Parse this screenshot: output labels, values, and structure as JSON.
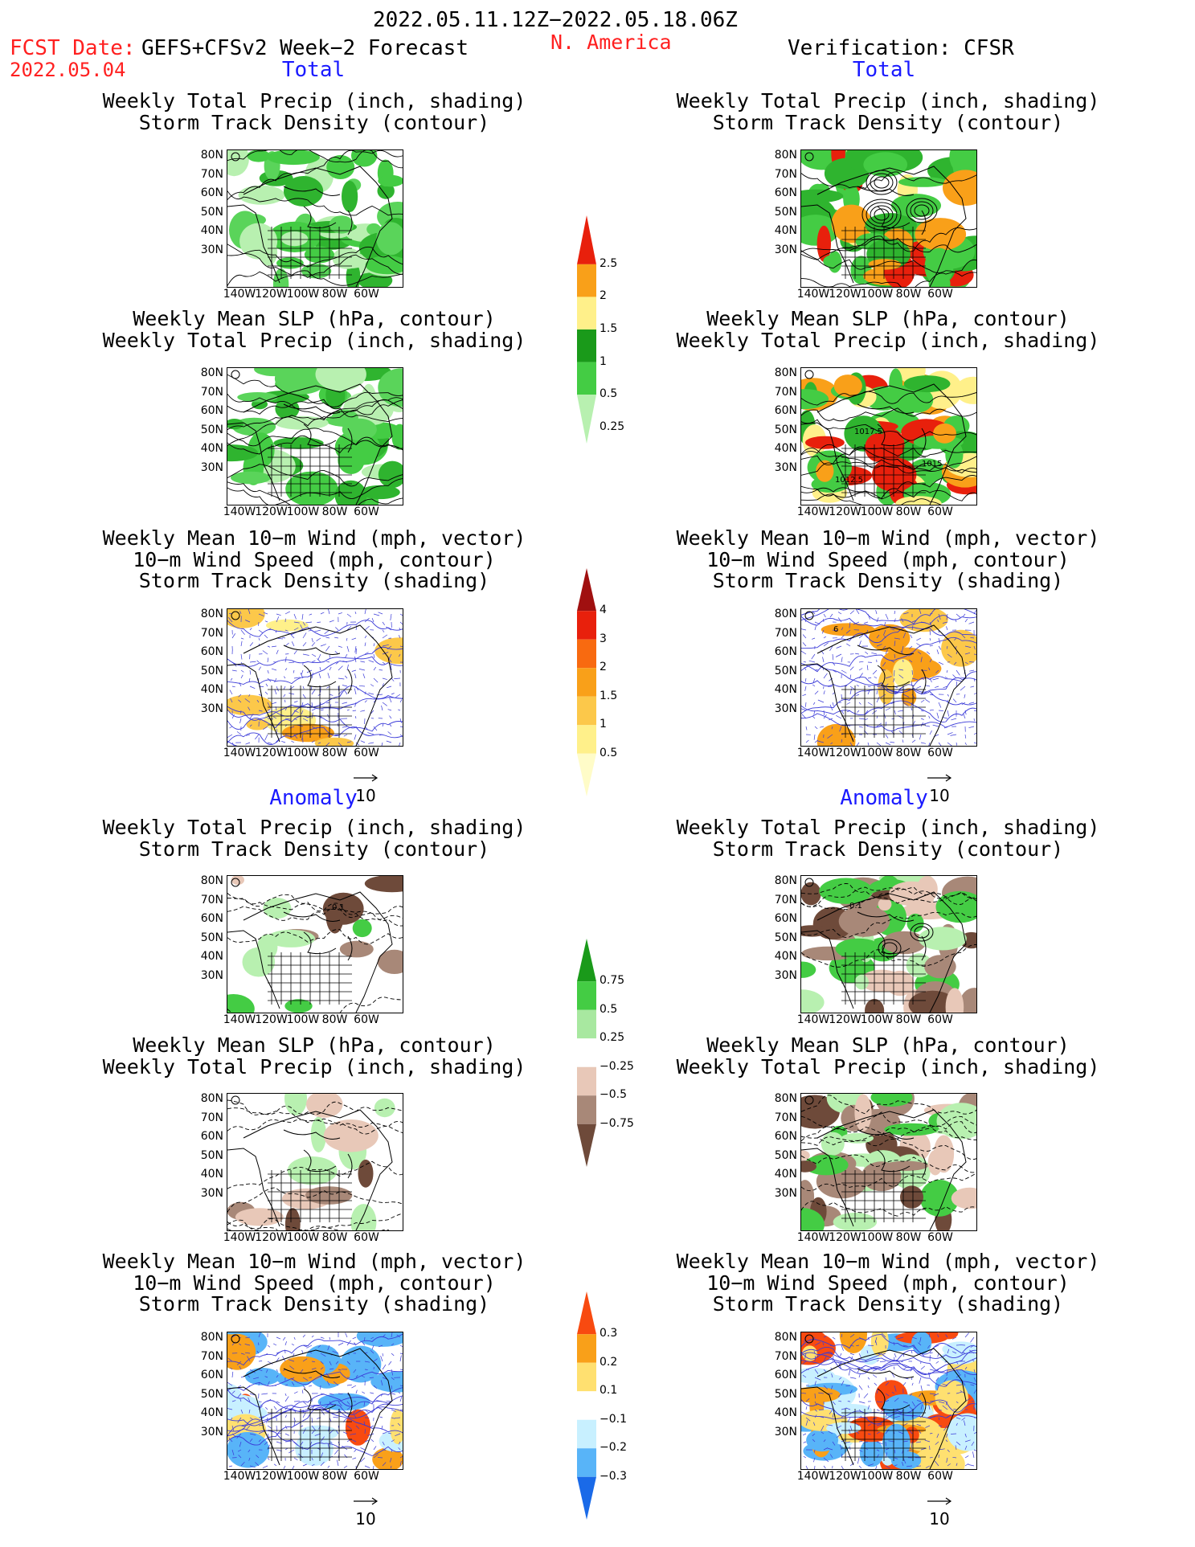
{
  "header": {
    "date_range": "2022.05.11.12Z−2022.05.18.06Z",
    "fcst_label": "FCST Date:",
    "fcst_date": "2022.05.04",
    "model": "GEFS+CFSv2 Week−2 Forecast",
    "region": "N. America",
    "verification": "Verification: CFSR"
  },
  "sections": {
    "total": "Total",
    "anomaly": "Anomaly"
  },
  "titles": {
    "precip_storm": [
      "Weekly Total Precip (inch, shading)",
      "Storm Track Density (contour)"
    ],
    "slp_precip": [
      "Weekly Mean SLP (hPa, contour)",
      "Weekly Total Precip (inch, shading)"
    ],
    "wind": [
      "Weekly Mean 10−m Wind (mph, vector)",
      "10−m Wind Speed (mph, contour)",
      "Storm Track Density (shading)"
    ]
  },
  "axes": {
    "lat": [
      "80N",
      "70N",
      "60N",
      "50N",
      "40N",
      "30N"
    ],
    "lon": [
      "140W",
      "120W",
      "100W",
      "80W",
      "60W"
    ]
  },
  "vector_ref": "10",
  "contour_labels": {
    "slp_h1": "1017.5",
    "slp_h2": "1015",
    "slp_l": "1012.5",
    "storm_a": "0.1",
    "wind_a": "6"
  },
  "colorbars": {
    "precip_total": {
      "labels": [
        "2.5",
        "2",
        "1.5",
        "1",
        "0.5",
        "0.25"
      ],
      "colors": [
        "#e8200c",
        "#f9a019",
        "#fff08a",
        "#1a9a1a",
        "#44cc44",
        "#b8f0b0"
      ]
    },
    "storm_total": {
      "labels": [
        "4",
        "3",
        "2",
        "1.5",
        "1",
        "0.5"
      ],
      "colors": [
        "#a01010",
        "#e8200c",
        "#f86a10",
        "#f9a019",
        "#fcc84a",
        "#fff08a",
        "#fffcc8"
      ]
    },
    "precip_anom": {
      "labels": [
        "0.75",
        "0.5",
        "0.25",
        "−0.25",
        "−0.5",
        "−0.75"
      ],
      "colors": [
        "#1a9a1a",
        "#44cc44",
        "#a8e8a0",
        "#ffffff",
        "#e8c8b8",
        "#a88878",
        "#6e4a3a"
      ]
    },
    "storm_anom": {
      "labels": [
        "0.3",
        "0.2",
        "0.1",
        "−0.1",
        "−0.2",
        "−0.3"
      ],
      "colors": [
        "#f84a10",
        "#f9a019",
        "#ffe070",
        "#ffffff",
        "#c8f0ff",
        "#58b4f8",
        "#1a6ae8"
      ]
    }
  }
}
